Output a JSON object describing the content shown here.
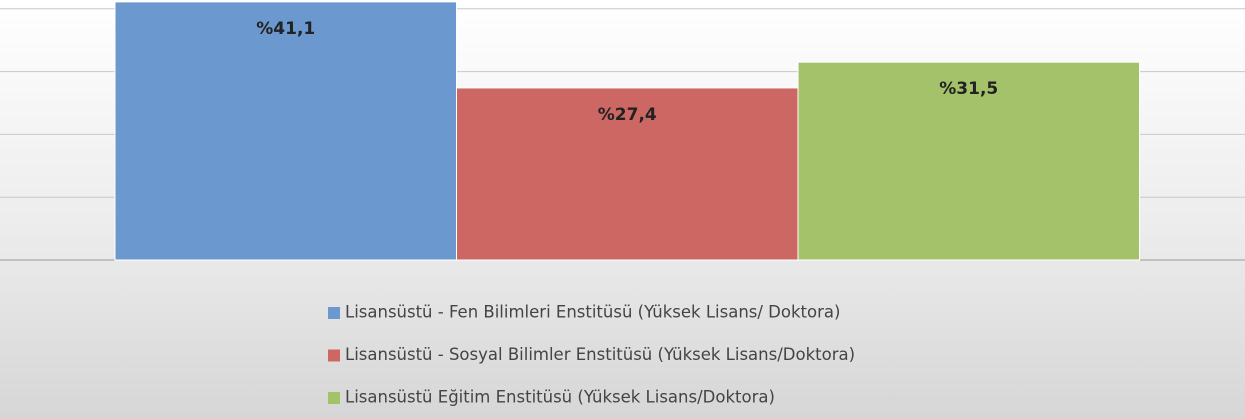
{
  "chart_data": {
    "type": "bar",
    "series": [
      {
        "name": "Lisansüstü - Fen Bilimleri Enstitüsü (Yüksek Lisans/ Doktora)",
        "color": "#6a98cf",
        "values": [
          41.1
        ],
        "value_labels": [
          "%41,1"
        ]
      },
      {
        "name": "Lisansüstü - Sosyal Bilimler Enstitüsü (Yüksek Lisans/Doktora)",
        "color": "#cd6764",
        "values": [
          27.4
        ],
        "value_labels": [
          "%27,4"
        ]
      },
      {
        "name": "Lisansüstü Eğitim Enstitüsü (Yüksek Lisans/Doktora)",
        "color": "#a4c26a",
        "values": [
          31.5
        ],
        "value_labels": [
          "%31,5"
        ]
      }
    ],
    "ylim": [
      0,
      45
    ],
    "yticks": [
      0,
      10,
      20,
      30,
      40
    ],
    "grid": true,
    "legend": "bottom"
  }
}
